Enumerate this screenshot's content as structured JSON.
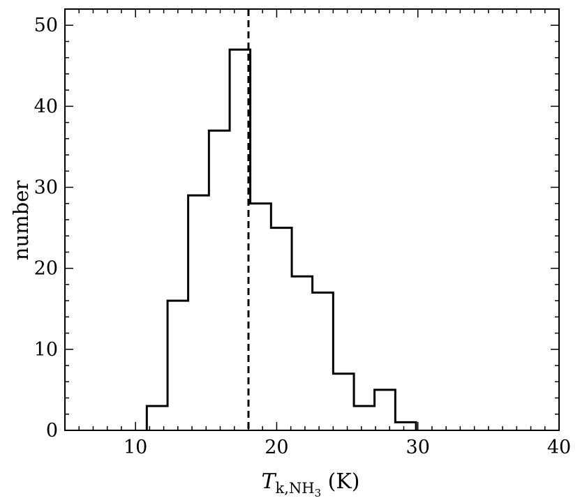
{
  "chart_data": {
    "type": "histogram",
    "title": "",
    "xlabel": {
      "symbol": "T",
      "subscript_main": "k,NH",
      "subscript_sub": "3",
      "unit": " (K)"
    },
    "ylabel": "number",
    "xlim": [
      5,
      40
    ],
    "ylim": [
      0,
      52
    ],
    "xticks": [
      10,
      20,
      30,
      40
    ],
    "yticks": [
      0,
      10,
      20,
      30,
      40,
      50
    ],
    "x_minor_step": 1,
    "y_minor_step": 2,
    "tick_direction": "in",
    "grid": false,
    "legend": "none",
    "bin_edges": [
      10.8,
      12.27,
      13.73,
      15.2,
      16.67,
      18.13,
      19.6,
      21.07,
      22.53,
      24.0,
      25.47,
      26.93,
      28.4,
      29.87
    ],
    "counts": [
      3,
      16,
      29,
      37,
      47,
      28,
      25,
      19,
      17,
      7,
      3,
      5,
      1
    ],
    "reference_line": {
      "x": 18.0,
      "style": "dashed"
    },
    "color": "#000000"
  }
}
